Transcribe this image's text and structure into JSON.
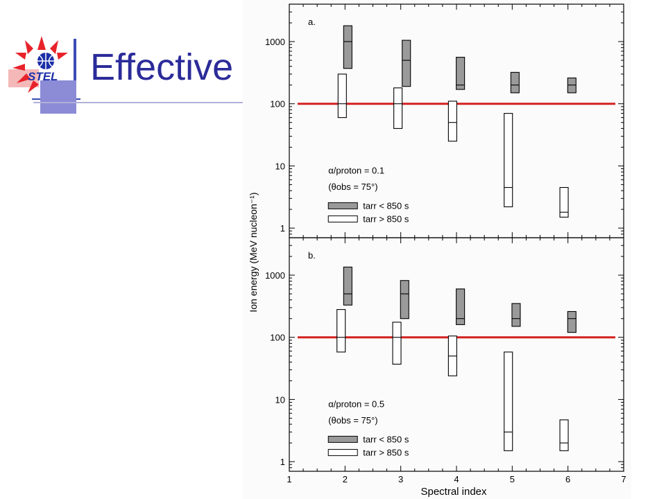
{
  "slide": {
    "title": "Effective",
    "logo_text": "STEL"
  },
  "colors": {
    "title": "#2b2b9a",
    "threshold_line": "#d42020",
    "filled_bar": "#9a9a9a",
    "open_bar": "#ffffff",
    "logo_red": "#e8222a",
    "logo_blue": "#1b2fa8",
    "accent_bar": "#8b8bd6"
  },
  "chart_data": [
    {
      "panel_label": "a.",
      "type": "range-bar",
      "x_scale": "linear",
      "y_scale": "log",
      "xlim": [
        1,
        7
      ],
      "ylim": [
        0.7,
        4000
      ],
      "threshold": 100,
      "annotation": {
        "line1": "α/proton = 0.1",
        "line2": "(θobs = 75°)"
      },
      "legend": {
        "filled_label": "tarr < 850 s",
        "open_label": "tarr > 850 s"
      },
      "series": [
        {
          "name": "tarr < 850 s",
          "style": "filled",
          "points": [
            {
              "x": 2.05,
              "low": 370,
              "high": 1800,
              "mid": 1000
            },
            {
              "x": 3.1,
              "low": 190,
              "high": 1050,
              "mid": 500
            },
            {
              "x": 4.07,
              "low": 170,
              "high": 560,
              "mid": 200
            },
            {
              "x": 5.05,
              "low": 150,
              "high": 320,
              "mid": 200
            },
            {
              "x": 6.07,
              "low": 150,
              "high": 260,
              "mid": 200
            }
          ]
        },
        {
          "name": "tarr > 850 s",
          "style": "open",
          "points": [
            {
              "x": 1.95,
              "low": 60,
              "high": 300,
              "mid": 100
            },
            {
              "x": 2.95,
              "low": 40,
              "high": 180,
              "mid": 100
            },
            {
              "x": 3.93,
              "low": 25,
              "high": 110,
              "mid": 50
            },
            {
              "x": 4.93,
              "low": 2.2,
              "high": 70,
              "mid": 4.5
            },
            {
              "x": 5.93,
              "low": 1.5,
              "high": 4.5,
              "mid": 1.8
            }
          ]
        }
      ]
    },
    {
      "panel_label": "b.",
      "type": "range-bar",
      "x_scale": "linear",
      "y_scale": "log",
      "xlim": [
        1,
        7
      ],
      "ylim": [
        0.7,
        4000
      ],
      "threshold": 100,
      "annotation": {
        "line1": "α/proton = 0.5",
        "line2": "(θobs = 75°)"
      },
      "legend": {
        "filled_label": "tarr < 850 s",
        "open_label": "tarr > 850 s"
      },
      "xlabel": "Spectral index",
      "x_ticks": [
        "1",
        "2",
        "3",
        "4",
        "5",
        "6",
        "7"
      ],
      "series": [
        {
          "name": "tarr < 850 s",
          "style": "filled",
          "points": [
            {
              "x": 2.05,
              "low": 330,
              "high": 1350,
              "mid": 500
            },
            {
              "x": 3.07,
              "low": 200,
              "high": 820,
              "mid": 500
            },
            {
              "x": 4.07,
              "low": 160,
              "high": 600,
              "mid": 200
            },
            {
              "x": 5.07,
              "low": 150,
              "high": 350,
              "mid": 200
            },
            {
              "x": 6.07,
              "low": 120,
              "high": 260,
              "mid": 200
            }
          ]
        },
        {
          "name": "tarr > 850 s",
          "style": "open",
          "points": [
            {
              "x": 1.93,
              "low": 58,
              "high": 280,
              "mid": 100
            },
            {
              "x": 2.93,
              "low": 37,
              "high": 175,
              "mid": 100
            },
            {
              "x": 3.93,
              "low": 24,
              "high": 105,
              "mid": 50
            },
            {
              "x": 4.93,
              "low": 1.5,
              "high": 58,
              "mid": 3
            },
            {
              "x": 5.93,
              "low": 1.5,
              "high": 4.7,
              "mid": 2
            }
          ]
        }
      ]
    }
  ],
  "axes": {
    "ylabel": "Ion energy (MeV nucleon⁻¹)",
    "y_ticks": [
      "1",
      "10",
      "100",
      "1000"
    ]
  }
}
